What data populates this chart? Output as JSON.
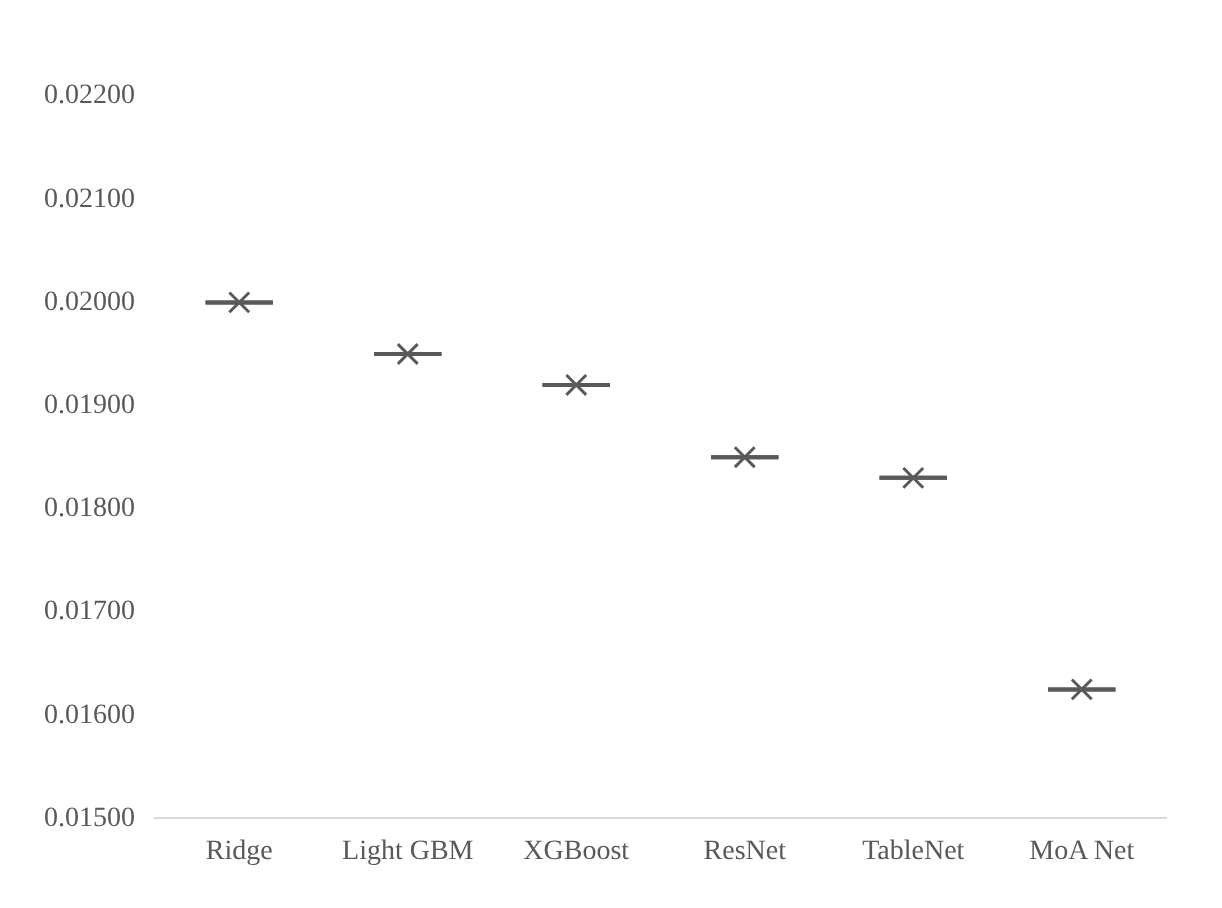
{
  "chart_data": {
    "type": "box",
    "categories": [
      "Ridge",
      "Light GBM",
      "XGBoost",
      "ResNet",
      "TableNet",
      "MoA Net"
    ],
    "boxes": [
      {
        "low": 0.02,
        "q1": 0.02,
        "median": 0.02,
        "q3": 0.02,
        "high": 0.02,
        "mean": 0.02
      },
      {
        "low": 0.0195,
        "q1": 0.0195,
        "median": 0.0195,
        "q3": 0.0195,
        "high": 0.0195,
        "mean": 0.0195
      },
      {
        "low": 0.0192,
        "q1": 0.0192,
        "median": 0.0192,
        "q3": 0.0192,
        "high": 0.0192,
        "mean": 0.0192
      },
      {
        "low": 0.0185,
        "q1": 0.0185,
        "median": 0.0185,
        "q3": 0.0185,
        "high": 0.0185,
        "mean": 0.0185
      },
      {
        "low": 0.0183,
        "q1": 0.0183,
        "median": 0.0183,
        "q3": 0.0183,
        "high": 0.0183,
        "mean": 0.0183
      },
      {
        "low": 0.01625,
        "q1": 0.01625,
        "median": 0.01625,
        "q3": 0.01625,
        "high": 0.01625,
        "mean": 0.01625
      }
    ],
    "color": "#595959",
    "ylim": [
      0.015,
      0.022
    ],
    "yticks": [
      {
        "value": 0.015,
        "label": "0.01500"
      },
      {
        "value": 0.016,
        "label": "0.01600"
      },
      {
        "value": 0.017,
        "label": "0.01700"
      },
      {
        "value": 0.018,
        "label": "0.01800"
      },
      {
        "value": 0.019,
        "label": "0.01900"
      },
      {
        "value": 0.02,
        "label": "0.02000"
      },
      {
        "value": 0.021,
        "label": "0.02100"
      },
      {
        "value": 0.022,
        "label": "0.02200"
      }
    ],
    "grid": false,
    "legend": false
  }
}
